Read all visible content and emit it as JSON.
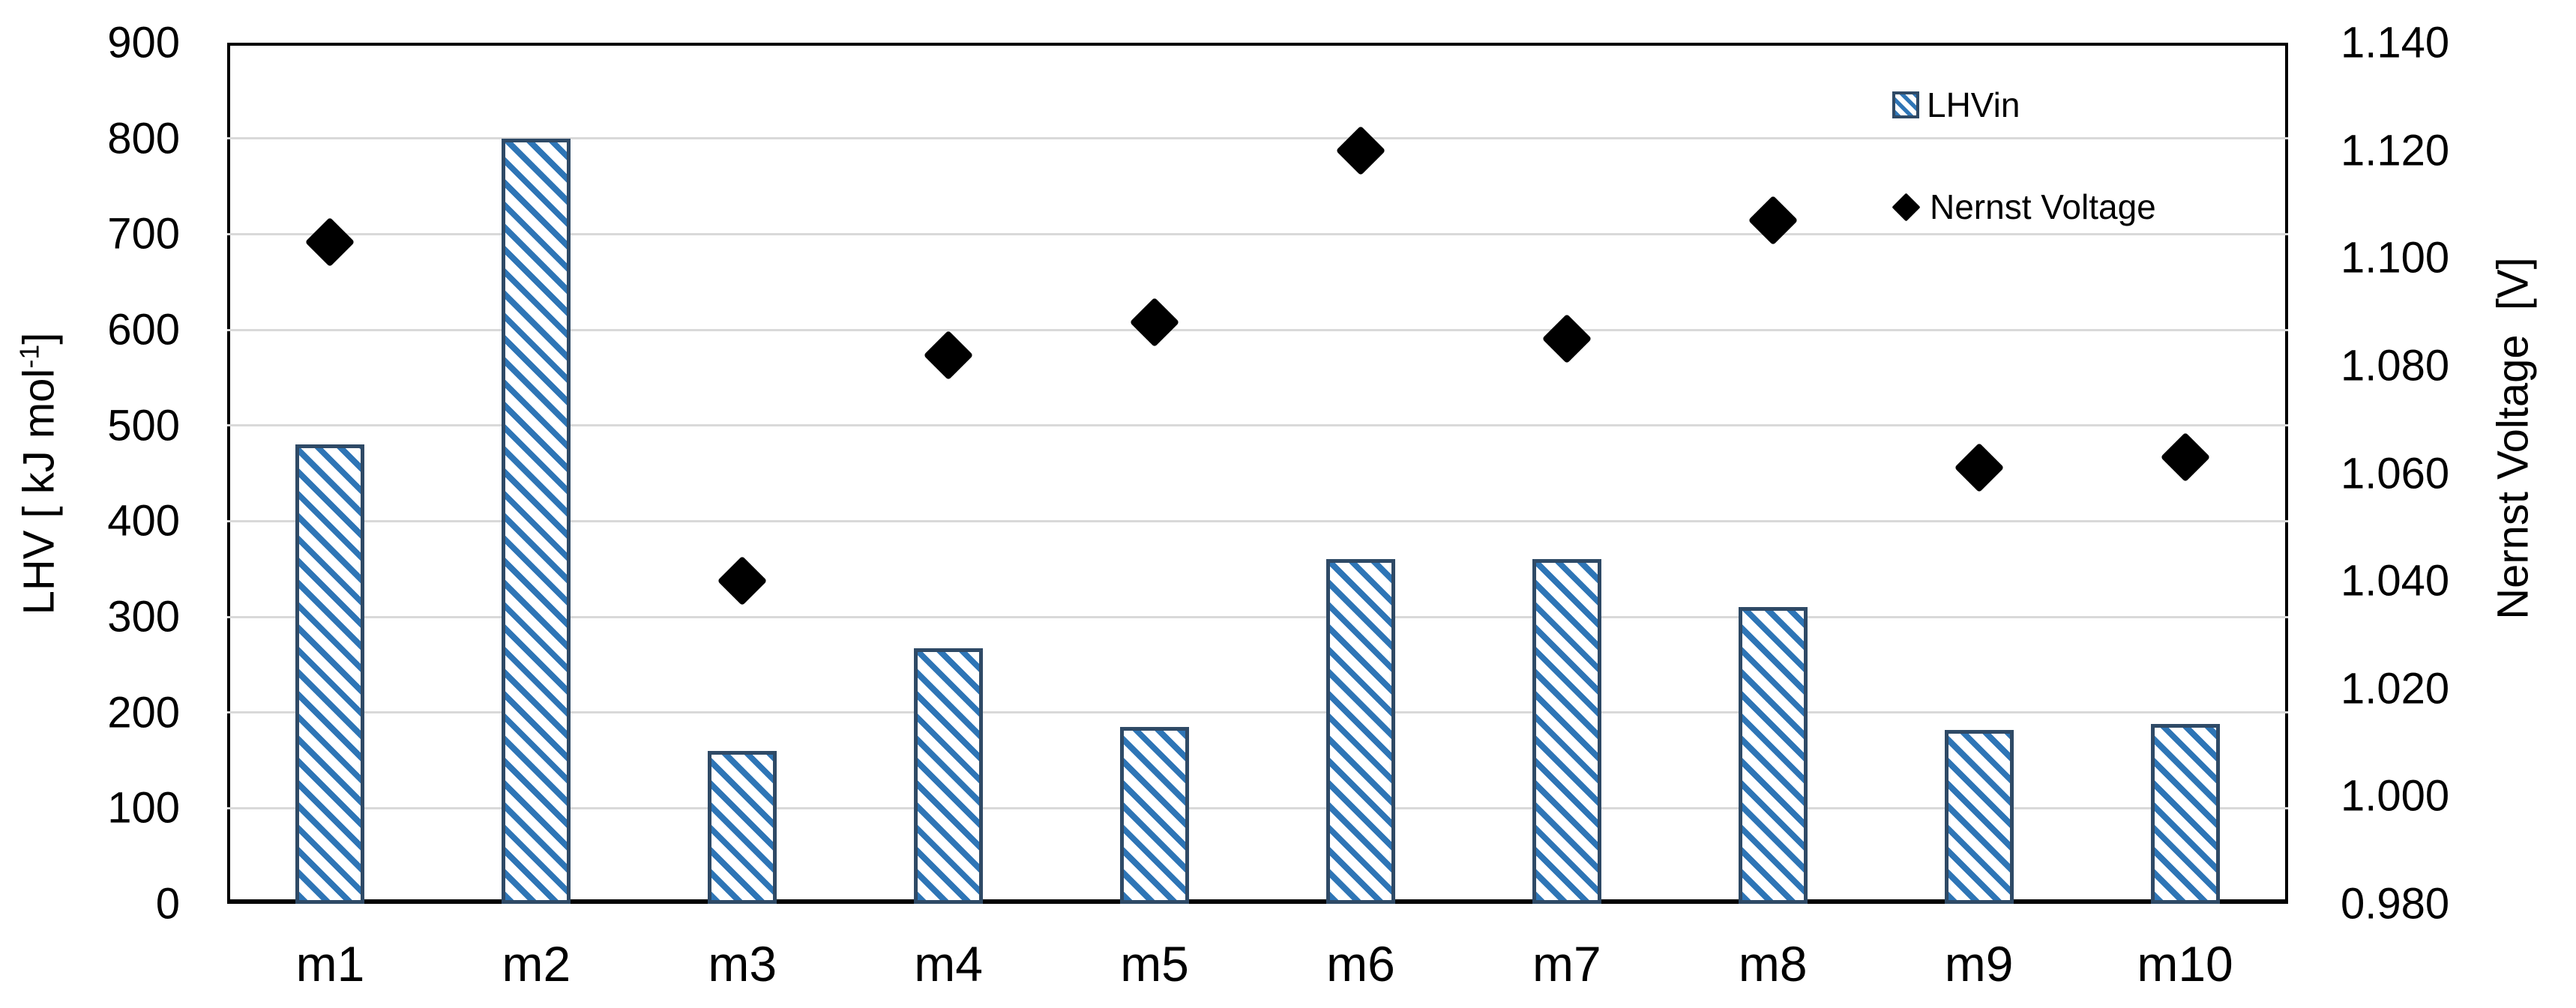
{
  "chart_data": {
    "type": "bar",
    "subtype": "dual-axis bar + scatter (Excel style)",
    "categories": [
      "m1",
      "m2",
      "m3",
      "m4",
      "m5",
      "m6",
      "m7",
      "m8",
      "m9",
      "m10"
    ],
    "series": [
      {
        "name": "LHVin",
        "type": "bar",
        "axis": "left",
        "marker": "blue-hatched-bar",
        "values": [
          480,
          800,
          160,
          267,
          185,
          360,
          360,
          310,
          182,
          188
        ]
      },
      {
        "name": "Nernst Voltage",
        "type": "scatter",
        "axis": "right",
        "marker": "black-diamond",
        "values": [
          1.103,
          null,
          1.04,
          1.082,
          1.088,
          1.12,
          1.085,
          1.107,
          1.061,
          1.063
        ]
      }
    ],
    "left_axis": {
      "title_parts": [
        "LHV [ kJ mol",
        "-1",
        "]"
      ],
      "range": [
        0,
        900
      ],
      "tick_step": 100,
      "ticks": [
        "900",
        "800",
        "700",
        "600",
        "500",
        "400",
        "300",
        "200",
        "100",
        "0"
      ]
    },
    "right_axis": {
      "title": "Nernst Voltage  [V]",
      "range": [
        0.98,
        1.14
      ],
      "tick_step": 0.02,
      "ticks": [
        "1.140",
        "1.120",
        "1.100",
        "1.080",
        "1.060",
        "1.040",
        "1.020",
        "1.000",
        "0.980"
      ]
    },
    "x_axis": {
      "tick_labels": [
        "m1",
        "m2",
        "m3",
        "m4",
        "m5",
        "m6",
        "m7",
        "m8",
        "m9",
        "m10"
      ]
    },
    "legend": {
      "position": "top-right-inside",
      "entries": [
        {
          "label": "LHVin",
          "marker": "hatched-square"
        },
        {
          "label": "Nernst Voltage",
          "marker": "black-diamond"
        }
      ]
    },
    "grid": "horizontal-only",
    "colors": {
      "bar_hatch": "#2E75B6",
      "bar_border": "#2F4A66",
      "scatter_marker": "#000000",
      "gridline": "#D9D9D9",
      "plot_border": "#000000",
      "background": "#FFFFFF"
    }
  }
}
